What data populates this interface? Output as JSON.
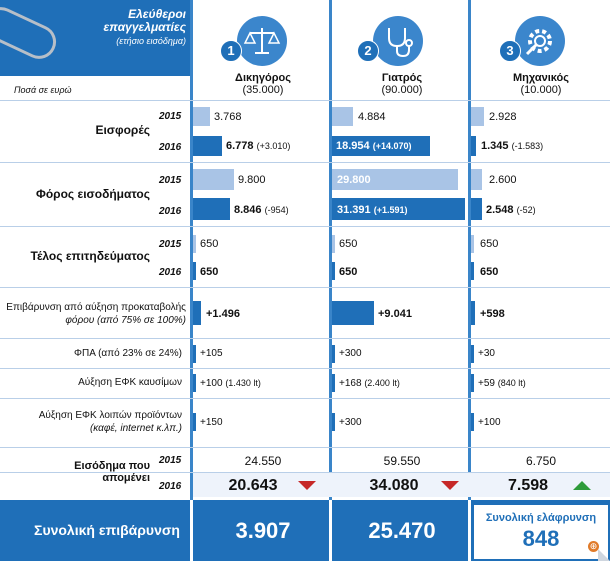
{
  "header": {
    "title": "Ελεύθεροι επαγγελματίες",
    "subtitle": "(ετήσιο εισόδημα)",
    "amounts_note": "Ποσά σε ευρώ"
  },
  "professions": [
    {
      "badge": "1",
      "name": "Δικηγόρος",
      "count": "(35.000)",
      "icon": "scales-icon"
    },
    {
      "badge": "2",
      "name": "Γιατρός",
      "count": "(90.000)",
      "icon": "stethoscope-icon"
    },
    {
      "badge": "3",
      "name": "Μηχανικός",
      "count": "(10.000)",
      "icon": "gear-icon"
    }
  ],
  "years": {
    "y2015": "2015",
    "y2016": "2016"
  },
  "rows": {
    "contributions": {
      "label": "Εισφορές",
      "v2015": [
        "3.768",
        "4.884",
        "2.928"
      ],
      "v2016": [
        "6.778",
        "18.954",
        "1.345"
      ],
      "d2016": [
        "(+3.010)",
        "(+14.070)",
        "(-1.583)"
      ],
      "num2015": [
        3768,
        4884,
        2928
      ],
      "num2016": [
        6778,
        18954,
        1345
      ]
    },
    "income_tax": {
      "label": "Φόρος εισοδήματος",
      "v2015": [
        "9.800",
        "29.800",
        "2.600"
      ],
      "v2016": [
        "8.846",
        "31.391",
        "2.548"
      ],
      "d2016": [
        "(-954)",
        "(+1.591)",
        "(-52)"
      ],
      "num2015": [
        9800,
        29800,
        2600
      ],
      "num2016": [
        8846,
        31391,
        2548
      ]
    },
    "professional_fee": {
      "label": "Τέλος επιτηδεύματος",
      "v2015": [
        "650",
        "650",
        "650"
      ],
      "v2016": [
        "650",
        "650",
        "650"
      ]
    },
    "prepayment": {
      "label_line1": "Επιβάρυνση από αύξηση προκαταβολής",
      "label_line2": "φόρου (από 75% σε 100%)",
      "values": [
        "+1.496",
        "+9.041",
        "+598"
      ],
      "num": [
        1496,
        9041,
        598
      ]
    },
    "vat": {
      "label": "ΦΠΑ (από 23% σε 24%)",
      "values": [
        "+105",
        "+300",
        "+30"
      ]
    },
    "fuel_excise": {
      "label": "Αύξηση ΕΦΚ καυσίμων",
      "values": [
        "+100",
        "+168",
        "+59"
      ],
      "notes": [
        "(1.430 lt)",
        "(2.400 lt)",
        "(840 lt)"
      ]
    },
    "other_excise": {
      "label_line1": "Αύξηση ΕΦΚ λοιπών προϊόντων",
      "label_line2": "(καφέ, internet κ.λπ.)",
      "values": [
        "+150",
        "+300",
        "+100"
      ]
    },
    "remaining_income": {
      "label_line1": "Εισόδημα που",
      "label_line2": "απομένει",
      "v2015": [
        "24.550",
        "59.550",
        "6.750"
      ],
      "v2016": [
        "20.643",
        "34.080",
        "7.598"
      ],
      "trend": [
        "down",
        "down",
        "up"
      ]
    }
  },
  "totals": {
    "label": "Συνολική επιβάρυνση",
    "values": [
      "3.907",
      "25.470"
    ],
    "relief_label": "Συνολική ελάφρυνση",
    "relief_value": "848"
  },
  "colors": {
    "primary": "#1f6fb8",
    "light_bar": "#a9c4e6",
    "down": "#c62828",
    "up": "#2e9b3a"
  }
}
